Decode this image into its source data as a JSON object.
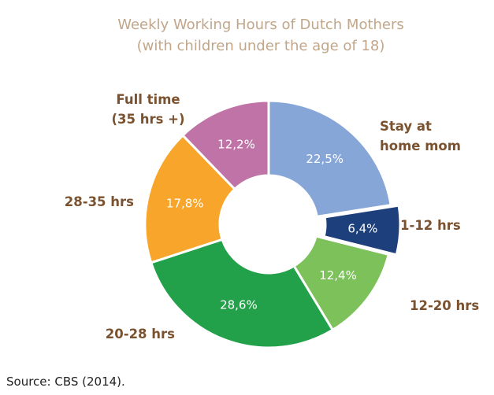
{
  "chart_data": {
    "type": "pie",
    "title": "Weekly Working Hours of Dutch Mothers",
    "subtitle": "(with children under the age of 18)",
    "categories": [
      "Stay at home mom",
      "1-12 hrs",
      "12-20 hrs",
      "20-28 hrs",
      "28-35 hrs",
      "Full time (35 hrs +)"
    ],
    "category_label_lines": [
      [
        "Stay at",
        "home mom"
      ],
      [
        "1-12 hrs"
      ],
      [
        "12-20 hrs"
      ],
      [
        "20-28 hrs"
      ],
      [
        "28-35 hrs"
      ],
      [
        "Full time",
        "(35 hrs +)"
      ]
    ],
    "values": [
      22.5,
      6.4,
      12.4,
      28.6,
      17.8,
      12.2
    ],
    "value_labels": [
      "22,5%",
      "6,4%",
      "12,4%",
      "28,6%",
      "17,8%",
      "12,2%"
    ],
    "colors": [
      "#87a6d8",
      "#1d3f7c",
      "#7cc15a",
      "#23a14a",
      "#f7a62b",
      "#bf73a6"
    ],
    "label_color": "#7a5230",
    "title_color": "#c1a68a",
    "donut": true,
    "source": "Source: CBS (2014)."
  }
}
